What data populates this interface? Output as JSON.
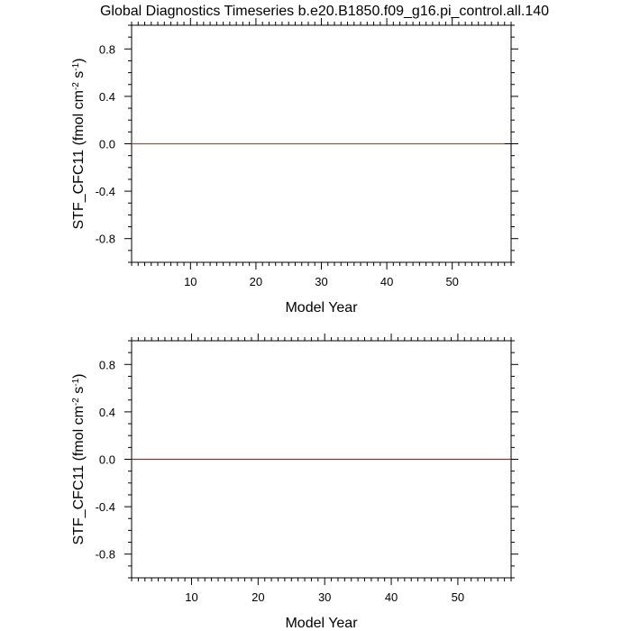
{
  "title": "Global Diagnostics Timeseries b.e20.B1850.f09_g16.pi_control.all.140",
  "chart_data": [
    {
      "type": "line",
      "xlabel": "Model Year",
      "ylabel_prefix": "STF_CFC11 (fmol cm",
      "ylabel_sup1": "-2",
      "ylabel_mid": " s",
      "ylabel_sup2": "-1",
      "ylabel_suffix": ")",
      "xlim": [
        1,
        59
      ],
      "ylim": [
        -1,
        1
      ],
      "xticks": [
        10,
        20,
        30,
        40,
        50
      ],
      "yticks": [
        -0.8,
        -0.4,
        0.0,
        0.4,
        0.8
      ],
      "ytick_labels": [
        "-0.8",
        "-0.4",
        "0.0",
        "0.4",
        "0.8"
      ],
      "reference_line": 0,
      "series": [
        {
          "color": "#a0522d",
          "x": [
            1,
            58
          ],
          "y": [
            0,
            0
          ]
        }
      ]
    },
    {
      "type": "line",
      "xlabel": "Model Year",
      "ylabel_prefix": "STF_CFC11 (fmol cm",
      "ylabel_sup1": "-2",
      "ylabel_mid": " s",
      "ylabel_sup2": "-1",
      "ylabel_suffix": ")",
      "xlim": [
        1,
        58
      ],
      "ylim": [
        -1,
        1
      ],
      "xticks": [
        10,
        20,
        30,
        40,
        50
      ],
      "yticks": [
        -0.8,
        -0.4,
        0.0,
        0.4,
        0.8
      ],
      "ytick_labels": [
        "-0.8",
        "-0.4",
        "0.0",
        "0.4",
        "0.8"
      ],
      "reference_line": 0,
      "series": [
        {
          "color": "#b22222",
          "x": [
            1,
            58
          ],
          "y": [
            0,
            0
          ]
        }
      ]
    }
  ]
}
